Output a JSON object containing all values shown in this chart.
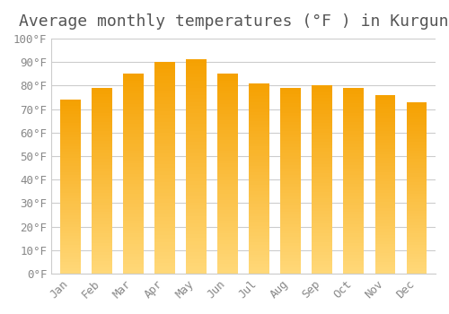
{
  "title": "Average monthly temperatures (°F ) in Kurgunta",
  "months": [
    "Jan",
    "Feb",
    "Mar",
    "Apr",
    "May",
    "Jun",
    "Jul",
    "Aug",
    "Sep",
    "Oct",
    "Nov",
    "Dec"
  ],
  "values": [
    74,
    79,
    85,
    90,
    91,
    85,
    81,
    79,
    80,
    79,
    76,
    73
  ],
  "bar_color_bottom": "#FFD878",
  "bar_color_top": "#F5A000",
  "background_color": "#ffffff",
  "grid_color": "#cccccc",
  "title_fontsize": 13,
  "tick_fontsize": 9,
  "ylim": [
    0,
    100
  ],
  "yticks": [
    0,
    10,
    20,
    30,
    40,
    50,
    60,
    70,
    80,
    90,
    100
  ],
  "ytick_labels": [
    "0°F",
    "10°F",
    "20°F",
    "30°F",
    "40°F",
    "50°F",
    "60°F",
    "70°F",
    "80°F",
    "90°F",
    "100°F"
  ]
}
